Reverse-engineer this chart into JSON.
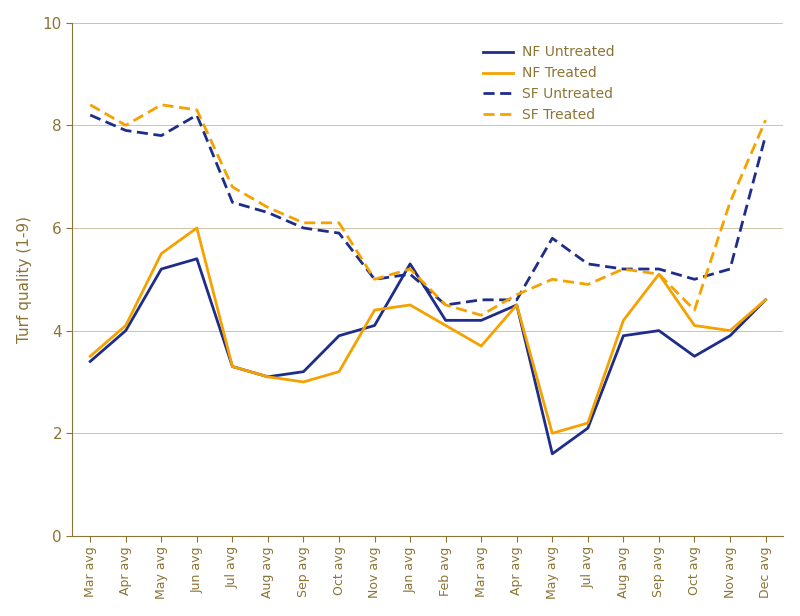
{
  "x_labels": [
    "Mar avg",
    "Apr avg",
    "May avg",
    "Jun avg",
    "Jul avg",
    "Aug avg",
    "Sep avg",
    "Oct avg",
    "Nov avg",
    "Jan avg",
    "Feb avg",
    "Mar avg",
    "Apr avg",
    "May avg",
    "Jul avg",
    "Aug avg",
    "Sep avg",
    "Oct avg",
    "Nov avg",
    "Dec avg"
  ],
  "nf_untreated": [
    3.4,
    4.0,
    5.2,
    5.4,
    3.3,
    3.1,
    3.2,
    3.9,
    4.1,
    5.3,
    4.2,
    4.2,
    4.5,
    1.6,
    2.1,
    3.9,
    4.0,
    3.5,
    3.9,
    4.6
  ],
  "nf_treated": [
    3.5,
    4.1,
    5.5,
    6.0,
    3.3,
    3.1,
    3.0,
    3.2,
    4.4,
    4.5,
    4.1,
    3.7,
    4.5,
    2.0,
    2.2,
    4.2,
    5.1,
    4.1,
    4.0,
    4.6
  ],
  "sf_untreated": [
    8.2,
    7.9,
    7.8,
    8.2,
    6.5,
    6.3,
    6.0,
    5.9,
    5.0,
    5.1,
    4.5,
    4.6,
    4.6,
    5.8,
    5.3,
    5.2,
    5.2,
    5.0,
    5.2,
    7.8
  ],
  "sf_treated": [
    8.4,
    8.0,
    8.4,
    8.3,
    6.8,
    6.4,
    6.1,
    6.1,
    5.0,
    5.2,
    4.5,
    4.3,
    4.7,
    5.0,
    4.9,
    5.2,
    5.1,
    4.4,
    6.5,
    8.1
  ],
  "navy_color": "#1e2d8a",
  "orange_color": "#f5a200",
  "ylabel": "Turf quality (1-9)",
  "ylim": [
    0,
    10
  ],
  "yticks": [
    0,
    2,
    4,
    6,
    8,
    10
  ],
  "legend_labels": [
    "NF Untreated",
    "NF Treated",
    "SF Untreated",
    "SF Treated"
  ],
  "text_color": "#8b7535",
  "linewidth": 2.0
}
